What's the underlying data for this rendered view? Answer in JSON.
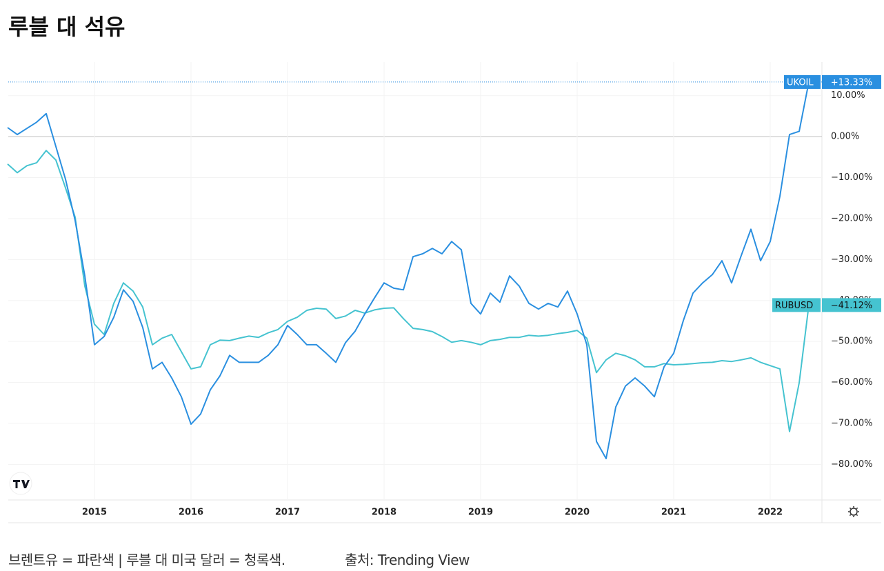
{
  "chart_data": {
    "type": "line",
    "title": "루블 대 석유",
    "x": [
      2014.1,
      2014.2,
      2014.3,
      2014.4,
      2014.5,
      2014.6,
      2014.7,
      2014.8,
      2014.9,
      2015.0,
      2015.1,
      2015.2,
      2015.3,
      2015.4,
      2015.5,
      2015.6,
      2015.7,
      2015.8,
      2015.9,
      2016.0,
      2016.1,
      2016.2,
      2016.3,
      2016.4,
      2016.5,
      2016.6,
      2016.7,
      2016.8,
      2016.9,
      2017.0,
      2017.1,
      2017.2,
      2017.3,
      2017.4,
      2017.5,
      2017.6,
      2017.7,
      2017.8,
      2017.9,
      2018.0,
      2018.1,
      2018.2,
      2018.3,
      2018.4,
      2018.5,
      2018.6,
      2018.7,
      2018.8,
      2018.9,
      2019.0,
      2019.1,
      2019.2,
      2019.3,
      2019.4,
      2019.5,
      2019.6,
      2019.7,
      2019.8,
      2019.9,
      2020.0,
      2020.1,
      2020.2,
      2020.3,
      2020.4,
      2020.5,
      2020.6,
      2020.7,
      2020.8,
      2020.9,
      2021.0,
      2021.1,
      2021.2,
      2021.3,
      2021.4,
      2021.5,
      2021.6,
      2021.7,
      2021.8,
      2021.9,
      2022.0,
      2022.1,
      2022.2,
      2022.3,
      2022.4
    ],
    "xlim": [
      2014.107,
      2022.536
    ],
    "xticks": [
      2015,
      2016,
      2017,
      2018,
      2019,
      2020,
      2021,
      2022
    ],
    "ylim": [
      -88.7,
      18.2
    ],
    "yticks": [
      {
        "value": 10,
        "label": "10.00%"
      },
      {
        "value": 0,
        "label": "0.00%"
      },
      {
        "value": -10,
        "label": "−10.00%"
      },
      {
        "value": -20,
        "label": "−20.00%"
      },
      {
        "value": -30,
        "label": "−30.00%"
      },
      {
        "value": -40,
        "label": "−40.00%"
      },
      {
        "value": -50,
        "label": "−50.00%"
      },
      {
        "value": -60,
        "label": "−60.00%"
      },
      {
        "value": -70,
        "label": "−70.00%"
      },
      {
        "value": -80,
        "label": "−80.00%"
      }
    ],
    "grid": true,
    "series": [
      {
        "name": "UKOIL",
        "color": "#2a8fe0",
        "end_label": "+13.33%",
        "values": [
          2.2,
          0.5,
          2.0,
          3.5,
          5.6,
          -2.4,
          -10.4,
          -20.5,
          -34.0,
          -50.8,
          -48.8,
          -44.1,
          -37.4,
          -40.2,
          -46.6,
          -56.7,
          -55.1,
          -58.9,
          -63.5,
          -70.2,
          -67.7,
          -61.8,
          -58.4,
          -53.4,
          -55.1,
          -55.1,
          -55.1,
          -53.4,
          -50.8,
          -46.1,
          -48.3,
          -50.8,
          -50.8,
          -52.9,
          -55.1,
          -50.3,
          -47.5,
          -43.3,
          -39.4,
          -35.7,
          -37.0,
          -37.4,
          -29.3,
          -28.6,
          -27.3,
          -28.6,
          -25.6,
          -27.6,
          -40.7,
          -43.3,
          -38.2,
          -40.4,
          -34.0,
          -36.5,
          -40.7,
          -42.1,
          -40.7,
          -41.6,
          -37.7,
          -43.3,
          -50.8,
          -74.4,
          -78.6,
          -66.0,
          -60.9,
          -58.9,
          -60.9,
          -63.5,
          -56.2,
          -52.9,
          -44.9,
          -38.2,
          -35.7,
          -33.7,
          -30.3,
          -35.7,
          -29.0,
          -22.6,
          -30.3,
          -25.6,
          -14.6,
          0.5,
          1.3,
          13.33
        ]
      },
      {
        "name": "RUBUSD",
        "color": "#45c3d0",
        "end_label": "−41.12%",
        "values": [
          -6.7,
          -8.8,
          -7.1,
          -6.4,
          -3.4,
          -5.7,
          -12.5,
          -19.7,
          -36.5,
          -45.8,
          -48.3,
          -40.7,
          -35.7,
          -37.7,
          -41.6,
          -50.8,
          -49.2,
          -48.3,
          -52.5,
          -56.7,
          -56.2,
          -50.8,
          -49.7,
          -49.8,
          -49.2,
          -48.7,
          -49.0,
          -47.9,
          -47.1,
          -45.1,
          -44.1,
          -42.4,
          -41.9,
          -42.1,
          -44.4,
          -43.8,
          -42.4,
          -43.1,
          -42.3,
          -41.9,
          -41.8,
          -44.4,
          -46.8,
          -47.1,
          -47.6,
          -48.8,
          -50.2,
          -49.8,
          -50.2,
          -50.8,
          -49.8,
          -49.5,
          -49.0,
          -49.0,
          -48.5,
          -48.7,
          -48.5,
          -48.1,
          -47.8,
          -47.3,
          -49.2,
          -57.6,
          -54.5,
          -52.9,
          -53.5,
          -54.5,
          -56.2,
          -56.2,
          -55.4,
          -55.7,
          -55.6,
          -55.4,
          -55.2,
          -55.1,
          -54.7,
          -54.9,
          -54.5,
          -54.0,
          -55.1,
          -55.9,
          -56.7,
          -72.0,
          -60.1,
          -41.12
        ]
      }
    ],
    "footnote": "브렌트유 = 파란색 |  루블 대 미국 달러 = 청록색.",
    "source": "출처: Trending View"
  }
}
